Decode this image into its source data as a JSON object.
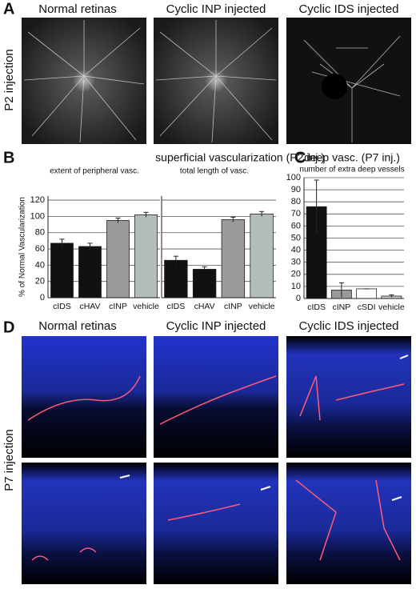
{
  "panels": {
    "A": {
      "letter": "A",
      "columns": [
        "Normal retinas",
        "Cyclic INP injected",
        "Cyclic IDS injected"
      ],
      "row_label": "P2 injection"
    },
    "B": {
      "letter": "B"
    },
    "C": {
      "letter": "C"
    },
    "D": {
      "letter": "D",
      "columns": [
        "Normal retinas",
        "Cyclic INP injected",
        "Cyclic IDS injected"
      ],
      "row_label": "P7 injection"
    }
  },
  "chart_data": [
    {
      "type": "bar",
      "title": "superficial vascularization (P2 inj.)",
      "subtitle": "extent of peripheral vasc.",
      "y_label": "% of Normal Vascularization",
      "categories": [
        "cIDS",
        "cHAV",
        "cINP",
        "vehicle"
      ],
      "values": [
        67,
        63,
        95,
        102
      ],
      "errors": [
        5,
        4,
        3,
        3
      ],
      "colors": [
        "#111111",
        "#111111",
        "#9a9a9a",
        "#b4bcbc"
      ],
      "ylim": [
        0,
        125
      ],
      "yticks": [
        0,
        20,
        40,
        60,
        80,
        100,
        120
      ],
      "grid": true
    },
    {
      "type": "bar",
      "subtitle": "total length of vasc.",
      "categories": [
        "cIDS",
        "cHAV",
        "cINP",
        "vehicle"
      ],
      "values": [
        46,
        35,
        96,
        103
      ],
      "errors": [
        5,
        3,
        3,
        3
      ],
      "colors": [
        "#111111",
        "#111111",
        "#9a9a9a",
        "#b4bcbc"
      ],
      "grid": true
    },
    {
      "type": "bar",
      "title": "deep vasc. (P7 inj.)",
      "subtitle": "number of extra deep vessels",
      "categories": [
        "cIDS",
        "cINP",
        "cSDI",
        "vehicle"
      ],
      "values": [
        76,
        7,
        8,
        2
      ],
      "errors": [
        22,
        6,
        0,
        1
      ],
      "colors": [
        "#111111",
        "#9a9a9a",
        "#ffffff",
        "#cccccc"
      ],
      "ylim": [
        0,
        100
      ],
      "yticks": [
        0,
        10,
        20,
        30,
        40,
        50,
        60,
        70,
        80,
        90,
        100
      ],
      "grid": true
    }
  ]
}
